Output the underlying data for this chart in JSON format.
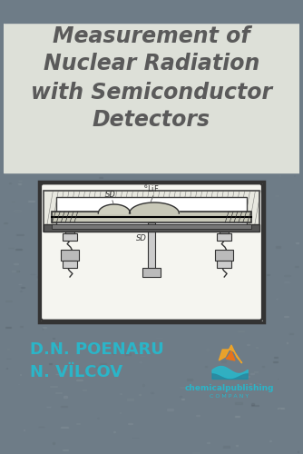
{
  "title_line1": "Measurement of",
  "title_line2": "Nuclear Radiation",
  "title_line3": "with Semiconductor",
  "title_line4": "Detectors",
  "author1": "D.N. POENARU",
  "author2": "N. VÏLCOV",
  "publisher": "chemicalpublishing",
  "publisher_sub": "C O M P A N Y",
  "bg_color": "#6e7c87",
  "title_bg_color": "#dde0d8",
  "title_text_color": "#5a5a5a",
  "author_text_color": "#2bb5c8",
  "diagram_bg": "#f5f5f0",
  "diagram_border": "#333333",
  "fig_width": 3.34,
  "fig_height": 5.0
}
